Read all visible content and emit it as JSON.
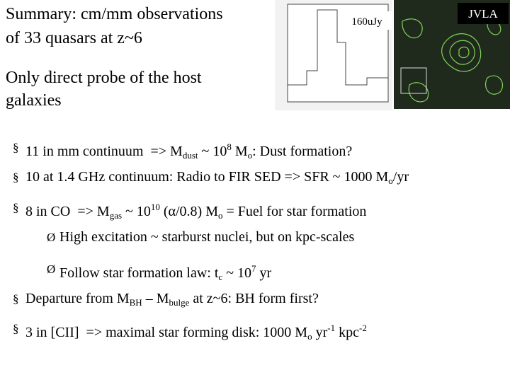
{
  "title": {
    "lines": [
      "Summary: cm/mm observations",
      "of 33 quasars at z~6"
    ]
  },
  "subtitle": {
    "lines": [
      "Only direct probe of the host",
      "galaxies"
    ]
  },
  "figure": {
    "flux_label": "160uJy",
    "telescope": "JVLA"
  },
  "bullets": [
    {
      "marker": "§",
      "level": 1,
      "parts": [
        {
          "text": "11 in mm continuum  => M"
        },
        {
          "text": "dust",
          "style": "sub"
        },
        {
          "text": " ~ 10"
        },
        {
          "text": "8",
          "style": "sup"
        },
        {
          "text": " M"
        },
        {
          "text": "o",
          "style": "sub"
        },
        {
          "text": ": Dust formation?"
        }
      ]
    },
    {
      "marker": "§",
      "level": 1,
      "parts": [
        {
          "text": "10 at 1.4 GHz continuum: Radio to FIR SED => SFR ~ 1000 M"
        },
        {
          "text": "o",
          "style": "sub"
        },
        {
          "text": "/yr"
        }
      ]
    },
    {
      "marker": "§",
      "level": 1,
      "parts": [
        {
          "text": "8 in CO  => M"
        },
        {
          "text": "gas",
          "style": "sub"
        },
        {
          "text": " ~ 10"
        },
        {
          "text": "10",
          "style": "sup"
        },
        {
          "text": " (α/0.8) M"
        },
        {
          "text": "o",
          "style": "sub"
        },
        {
          "text": " = Fuel for star formation"
        }
      ]
    },
    {
      "marker": "Ø",
      "level": 2,
      "parts": [
        {
          "text": "High excitation ~ starburst nuclei, but on kpc-scales"
        }
      ]
    },
    {
      "marker": "Ø",
      "level": 2,
      "parts": [
        {
          "text": "Follow star formation law: t"
        },
        {
          "text": "c",
          "style": "sub"
        },
        {
          "text": " ~ 10"
        },
        {
          "text": "7",
          "style": "sup"
        },
        {
          "text": " yr"
        }
      ]
    },
    {
      "marker": "§",
      "level": 1,
      "parts": [
        {
          "text": "Departure from M"
        },
        {
          "text": "BH",
          "style": "sub"
        },
        {
          "text": " – M"
        },
        {
          "text": "bulge",
          "style": "sub"
        },
        {
          "text": " at z~6: BH form first?"
        }
      ]
    },
    {
      "marker": "§",
      "level": 1,
      "parts": [
        {
          "text": "3 in [CII]  => maximal star forming disk: 1000 M"
        },
        {
          "text": "o",
          "style": "sub"
        },
        {
          "text": " yr"
        },
        {
          "text": "-1",
          "style": "sup"
        },
        {
          "text": " kpc"
        },
        {
          "text": "-2",
          "style": "sup"
        }
      ]
    }
  ]
}
